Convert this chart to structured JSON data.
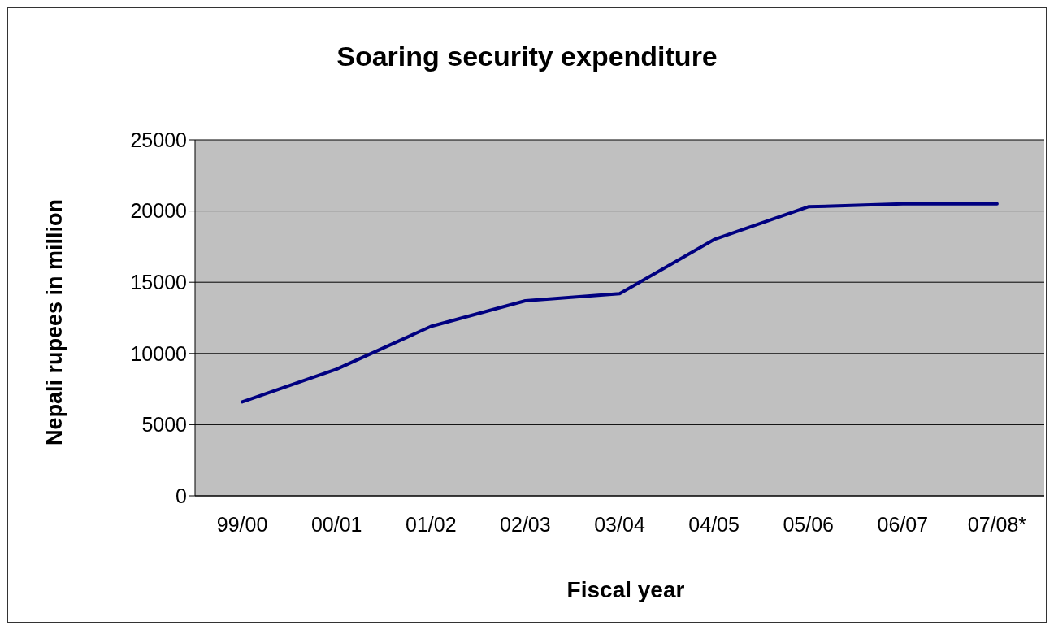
{
  "chart_data": {
    "type": "line",
    "title": "Soaring security expenditure",
    "xlabel": "Fiscal year",
    "ylabel": "Nepali rupees in million",
    "categories": [
      "99/00",
      "00/01",
      "01/02",
      "02/03",
      "03/04",
      "04/05",
      "05/06",
      "06/07",
      "07/08*"
    ],
    "series": [
      {
        "color": "#000080",
        "values": [
          6600,
          8900,
          11900,
          13700,
          14200,
          18000,
          20300,
          20500,
          20500
        ]
      }
    ],
    "ylim": [
      0,
      25000
    ],
    "yticks": [
      0,
      5000,
      10000,
      15000,
      20000,
      25000
    ],
    "grid": "y",
    "marker": "none",
    "line_style": "solid"
  }
}
